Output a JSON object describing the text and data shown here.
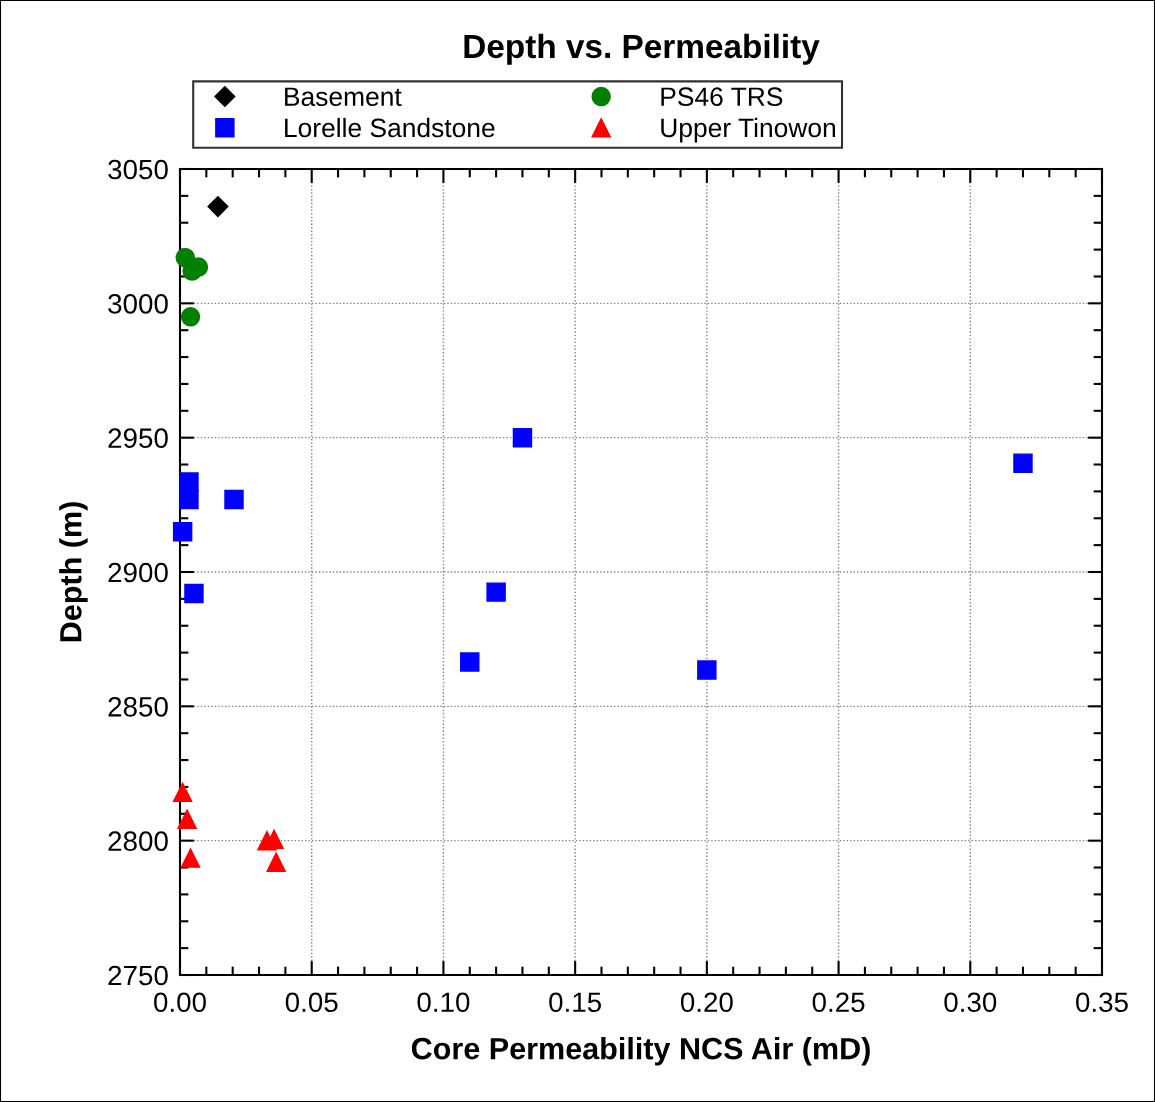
{
  "chart_data": {
    "type": "scatter",
    "title": "Depth vs. Permeability",
    "xlabel": "Core Permeability NCS Air (mD)",
    "ylabel": "Depth (m)",
    "xlim": [
      0,
      0.35
    ],
    "xticks": [
      {
        "value": 0,
        "label": "0.00"
      },
      {
        "value": 0.05,
        "label": "0.05"
      },
      {
        "value": 0.1,
        "label": "0.10"
      },
      {
        "value": 0.15,
        "label": "0.15"
      },
      {
        "value": 0.2,
        "label": "0.20"
      },
      {
        "value": 0.25,
        "label": "0.25"
      },
      {
        "value": 0.3,
        "label": "0.30"
      },
      {
        "value": 0.35,
        "label": "0.35"
      }
    ],
    "ylim": [
      2750,
      3050
    ],
    "yticks": [
      2750,
      2800,
      2850,
      2900,
      2950,
      3000,
      3050
    ],
    "grid": true,
    "legend": "top",
    "series": [
      {
        "name": "Basement",
        "color": "#000000",
        "marker": "diamond",
        "x": [
          0.0144
        ],
        "values": [
          3036
        ]
      },
      {
        "name": "PS46 TRS",
        "color": "#008000",
        "marker": "circle",
        "x": [
          0.002,
          0.007,
          0.0046,
          0.004
        ],
        "values": [
          3017,
          3013.5,
          3012,
          2995
        ]
      },
      {
        "name": "Lorelle Sandstone",
        "color": "#0000ff",
        "marker": "square",
        "x": [
          0.0034,
          0.0034,
          0.0205,
          0.001,
          0.0053,
          0.13,
          0.32,
          0.12,
          0.11,
          0.2
        ],
        "values": [
          2933.5,
          2927,
          2927,
          2915,
          2892,
          2950,
          2940.5,
          2892.5,
          2866.5,
          2863.5
        ]
      },
      {
        "name": "Upper Tinowon",
        "color": "#ff0000",
        "marker": "triangle",
        "x": [
          0.001,
          0.0027,
          0.004,
          0.033,
          0.0357,
          0.0365
        ],
        "values": [
          2818,
          2808,
          2793.5,
          2800,
          2800.5,
          2792
        ]
      }
    ]
  }
}
